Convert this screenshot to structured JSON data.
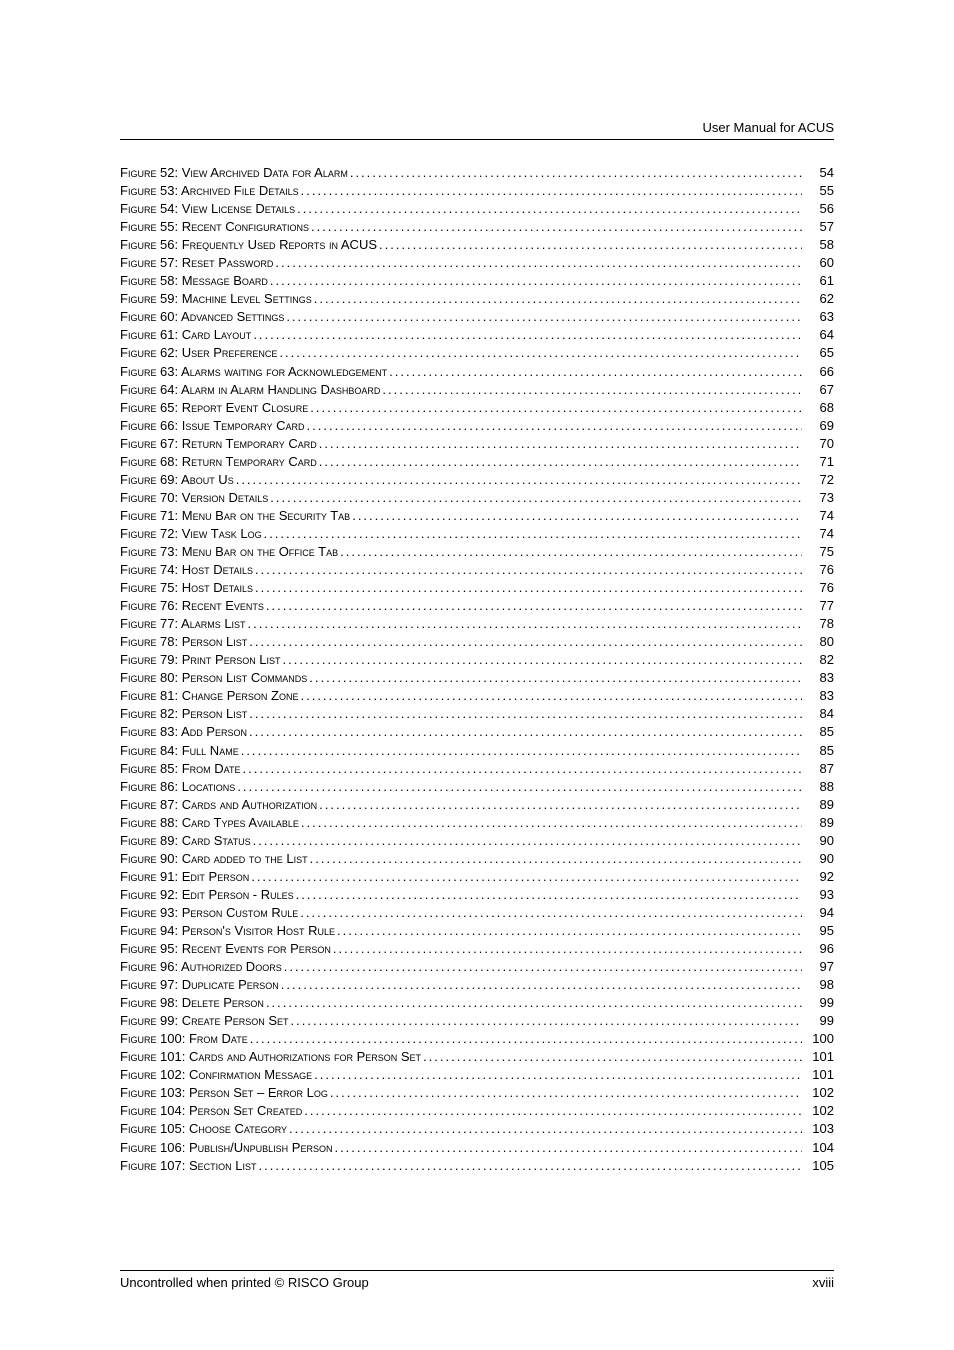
{
  "header": {
    "text": "User Manual for ACUS"
  },
  "footer": {
    "left": "Uncontrolled when printed © RISCO Group",
    "right": "xviii"
  },
  "toc": [
    {
      "label": "Figure 52: View Archived Data for Alarm",
      "page": "54"
    },
    {
      "label": "Figure 53: Archived File Details",
      "page": "55"
    },
    {
      "label": "Figure 54: View License Details",
      "page": "56"
    },
    {
      "label": "Figure 55: Recent Configurations",
      "page": "57"
    },
    {
      "label": "Figure 56: Frequently Used Reports in ACUS",
      "page": "58"
    },
    {
      "label": "Figure 57: Reset Password",
      "page": "60"
    },
    {
      "label": "Figure 58: Message Board",
      "page": "61"
    },
    {
      "label": "Figure 59: Machine Level Settings",
      "page": "62"
    },
    {
      "label": "Figure 60: Advanced Settings",
      "page": "63"
    },
    {
      "label": "Figure 61: Card Layout",
      "page": "64"
    },
    {
      "label": "Figure 62: User Preference",
      "page": "65"
    },
    {
      "label": "Figure 63: Alarms waiting for Acknowledgement",
      "page": "66"
    },
    {
      "label": "Figure 64: Alarm in Alarm Handling Dashboard",
      "page": "67"
    },
    {
      "label": "Figure 65: Report Event Closure",
      "page": "68"
    },
    {
      "label": "Figure 66: Issue Temporary Card",
      "page": "69"
    },
    {
      "label": "Figure 67: Return Temporary Card",
      "page": "70"
    },
    {
      "label": "Figure 68: Return Temporary Card",
      "page": "71"
    },
    {
      "label": "Figure 69: About Us",
      "page": "72"
    },
    {
      "label": "Figure 70: Version Details",
      "page": "73"
    },
    {
      "label": "Figure 71: Menu Bar on the Security Tab",
      "page": "74"
    },
    {
      "label": "Figure 72: View Task Log",
      "page": "74"
    },
    {
      "label": "Figure 73: Menu Bar on the Office Tab",
      "page": "75"
    },
    {
      "label": "Figure 74: Host Details",
      "page": "76"
    },
    {
      "label": "Figure 75: Host Details",
      "page": "76"
    },
    {
      "label": "Figure 76: Recent Events",
      "page": "77"
    },
    {
      "label": "Figure 77: Alarms List",
      "page": "78"
    },
    {
      "label": "Figure 78: Person List",
      "page": "80"
    },
    {
      "label": "Figure 79: Print Person List",
      "page": "82"
    },
    {
      "label": "Figure 80: Person List Commands",
      "page": "83"
    },
    {
      "label": "Figure 81: Change Person Zone",
      "page": "83"
    },
    {
      "label": "Figure 82: Person List",
      "page": "84"
    },
    {
      "label": "Figure 83: Add Person",
      "page": "85"
    },
    {
      "label": "Figure 84: Full Name",
      "page": "85"
    },
    {
      "label": "Figure 85: From Date",
      "page": "87"
    },
    {
      "label": "Figure 86: Locations",
      "page": "88"
    },
    {
      "label": "Figure 87: Cards and Authorization",
      "page": "89"
    },
    {
      "label": "Figure 88: Card Types Available",
      "page": "89"
    },
    {
      "label": "Figure 89: Card Status",
      "page": "90"
    },
    {
      "label": "Figure 90: Card added to the List",
      "page": "90"
    },
    {
      "label": "Figure 91: Edit Person",
      "page": "92"
    },
    {
      "label": "Figure 92: Edit Person - Rules",
      "page": "93"
    },
    {
      "label": "Figure 93: Person Custom Rule",
      "page": "94"
    },
    {
      "label": "Figure 94: Person's Visitor Host Rule",
      "page": "95"
    },
    {
      "label": "Figure 95: Recent Events for Person",
      "page": "96"
    },
    {
      "label": "Figure 96: Authorized Doors",
      "page": "97"
    },
    {
      "label": "Figure 97: Duplicate Person",
      "page": "98"
    },
    {
      "label": "Figure 98: Delete Person",
      "page": "99"
    },
    {
      "label": "Figure 99: Create Person Set",
      "page": "99"
    },
    {
      "label": "Figure 100: From Date",
      "page": "100"
    },
    {
      "label": "Figure 101: Cards and Authorizations for Person Set",
      "page": "101"
    },
    {
      "label": "Figure 102: Confirmation Message",
      "page": "101"
    },
    {
      "label": "Figure 103: Person Set – Error Log",
      "page": "102"
    },
    {
      "label": "Figure 104: Person Set Created",
      "page": "102"
    },
    {
      "label": "Figure 105: Choose Category",
      "page": "103"
    },
    {
      "label": "Figure 106: Publish/Unpublish Person",
      "page": "104"
    },
    {
      "label": "Figure 107: Section List",
      "page": "105"
    }
  ]
}
